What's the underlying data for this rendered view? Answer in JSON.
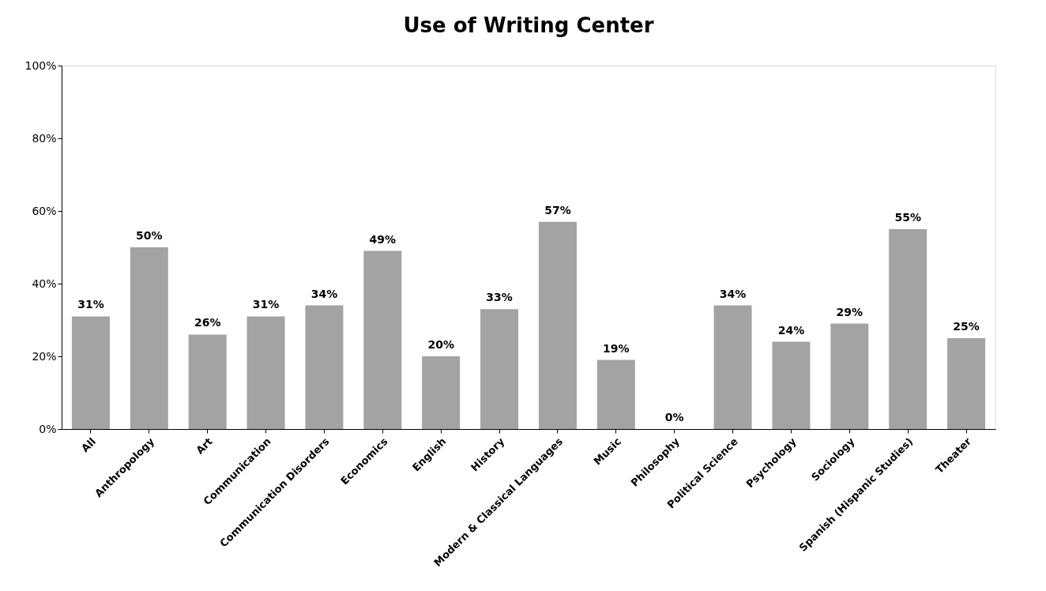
{
  "chart_data": {
    "type": "bar",
    "title": "Use of Writing Center",
    "categories": [
      "All",
      "Anthropology",
      "Art",
      "Communication",
      "Communication Disorders",
      "Economics",
      "English",
      "History",
      "Modern & Classical Languages",
      "Music",
      "Philosophy",
      "Political Science",
      "Psychology",
      "Sociology",
      "Spanish (Hispanic Studies)",
      "Theater"
    ],
    "values": [
      31,
      50,
      26,
      31,
      34,
      49,
      20,
      33,
      57,
      19,
      0,
      34,
      24,
      29,
      55,
      25
    ],
    "value_labels": [
      "31%",
      "50%",
      "26%",
      "31%",
      "34%",
      "49%",
      "20%",
      "33%",
      "57%",
      "19%",
      "0%",
      "34%",
      "24%",
      "29%",
      "55%",
      "25%"
    ],
    "color": "#a3a3a3",
    "ylim": [
      0,
      100
    ],
    "yticks": [
      {
        "value": 0,
        "label": "0%"
      },
      {
        "value": 20,
        "label": "20%"
      },
      {
        "value": 40,
        "label": "40%"
      },
      {
        "value": 60,
        "label": "60%"
      },
      {
        "value": 80,
        "label": "80%"
      },
      {
        "value": 100,
        "label": "100%"
      }
    ],
    "grid": false
  }
}
